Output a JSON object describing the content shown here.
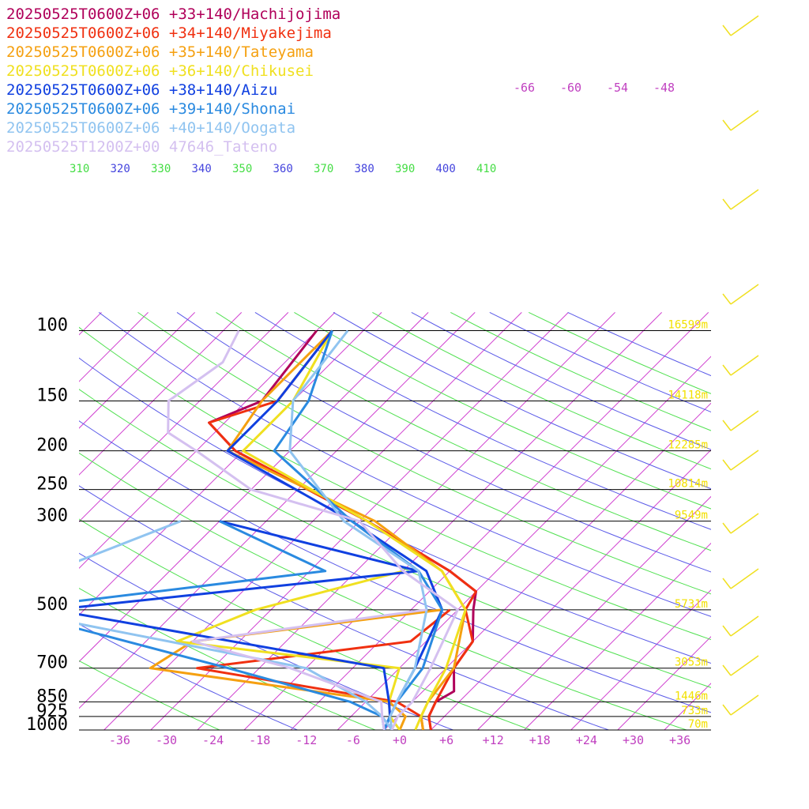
{
  "chart_data": {
    "type": "line",
    "subtype": "skew-T log-p",
    "pressure_levels": [
      100,
      150,
      200,
      250,
      300,
      500,
      700,
      850,
      925,
      1000
    ],
    "temperature_ticks": [
      "-36",
      "-30",
      "-24",
      "-18",
      "-12",
      "-6",
      "+0",
      "+6",
      "+12",
      "+18",
      "+24",
      "+30",
      "+36"
    ],
    "level_heights": [
      {
        "p": 100,
        "label": "16599m"
      },
      {
        "p": 150,
        "label": "14118m"
      },
      {
        "p": 200,
        "label": "12285m"
      },
      {
        "p": 250,
        "label": "10814m"
      },
      {
        "p": 300,
        "label": "9549m"
      },
      {
        "p": 500,
        "label": "5731m"
      },
      {
        "p": 700,
        "label": "3053m"
      },
      {
        "p": 850,
        "label": "1446m"
      },
      {
        "p": 925,
        "label": "733m"
      },
      {
        "p": 1000,
        "label": "70m"
      }
    ],
    "theta_labels": [
      {
        "label": "310",
        "color": "#44dd44"
      },
      {
        "label": "320",
        "color": "#4444dd"
      },
      {
        "label": "330",
        "color": "#44dd44"
      },
      {
        "label": "340",
        "color": "#4444dd"
      },
      {
        "label": "350",
        "color": "#44dd44"
      },
      {
        "label": "360",
        "color": "#4444dd"
      },
      {
        "label": "370",
        "color": "#44dd44"
      },
      {
        "label": "380",
        "color": "#4444dd"
      },
      {
        "label": "390",
        "color": "#44dd44"
      },
      {
        "label": "400",
        "color": "#4444dd"
      },
      {
        "label": "410",
        "color": "#44dd44"
      }
    ],
    "isotherm_labels": [
      "-66",
      "-60",
      "-54",
      "-48"
    ],
    "grid": true,
    "legend_position": "top-left",
    "series": [
      {
        "name": "20250525T0600Z+06 +33+140/Hachijojima",
        "color": "#b0005a",
        "temperature": [
          [
            100,
            -62
          ],
          [
            150,
            -60
          ],
          [
            170,
            -64
          ],
          [
            200,
            -57
          ],
          [
            300,
            -31
          ],
          [
            400,
            -14
          ],
          [
            450,
            -8
          ],
          [
            500,
            -6
          ],
          [
            600,
            -2
          ],
          [
            700,
            -1
          ],
          [
            800,
            2
          ],
          [
            850,
            1
          ],
          [
            925,
            2
          ],
          [
            1000,
            4
          ]
        ],
        "dewpoint": []
      },
      {
        "name": "20250525T0600Z+06 +34+140/Miyakejima",
        "color": "#f03010",
        "temperature": [
          [
            100,
            -60
          ],
          [
            150,
            -58
          ],
          [
            170,
            -64
          ],
          [
            200,
            -57
          ],
          [
            300,
            -31
          ],
          [
            400,
            -14
          ],
          [
            450,
            -8
          ],
          [
            500,
            -7
          ],
          [
            600,
            -2
          ],
          [
            700,
            -1
          ],
          [
            850,
            1
          ],
          [
            925,
            2
          ],
          [
            1000,
            4
          ]
        ],
        "dewpoint": [
          [
            500,
            -9
          ],
          [
            600,
            -10
          ],
          [
            700,
            -34
          ],
          [
            850,
            -4
          ],
          [
            925,
            1
          ],
          [
            1000,
            3
          ]
        ]
      },
      {
        "name": "20250525T0600Z+06 +35+140/Tateyama",
        "color": "#f5a010",
        "temperature": [
          [
            100,
            -60
          ],
          [
            150,
            -60
          ],
          [
            200,
            -58
          ],
          [
            300,
            -30
          ],
          [
            400,
            -15
          ],
          [
            500,
            -7
          ],
          [
            700,
            -1
          ],
          [
            850,
            0
          ],
          [
            925,
            1
          ],
          [
            1000,
            3
          ]
        ],
        "dewpoint": [
          [
            500,
            -10
          ],
          [
            600,
            -38
          ],
          [
            700,
            -40
          ],
          [
            850,
            -5
          ],
          [
            925,
            -1
          ],
          [
            1000,
            0
          ]
        ]
      },
      {
        "name": "20250525T0600Z+06 +36+140/Chikusei",
        "color": "#f0e020",
        "temperature": [
          [
            100,
            -60
          ],
          [
            150,
            -56
          ],
          [
            200,
            -56
          ],
          [
            300,
            -31
          ],
          [
            400,
            -15
          ],
          [
            500,
            -7
          ],
          [
            700,
            -2
          ],
          [
            850,
            0
          ],
          [
            925,
            1
          ],
          [
            1000,
            2
          ]
        ],
        "dewpoint": [
          [
            400,
            -20
          ],
          [
            500,
            -34
          ],
          [
            600,
            -40
          ],
          [
            700,
            -8
          ],
          [
            850,
            -5
          ],
          [
            925,
            -3
          ],
          [
            1000,
            0
          ]
        ]
      },
      {
        "name": "20250525T0600Z+06 +38+140/Aizu",
        "color": "#1040e0",
        "temperature": [
          [
            100,
            -60
          ],
          [
            150,
            -58
          ],
          [
            200,
            -58
          ],
          [
            300,
            -33
          ],
          [
            400,
            -17
          ],
          [
            500,
            -10
          ],
          [
            700,
            -6
          ],
          [
            850,
            -4
          ],
          [
            925,
            -3
          ],
          [
            1000,
            -2
          ]
        ],
        "dewpoint": [
          [
            300,
            -50
          ],
          [
            400,
            -18
          ],
          [
            500,
            -60
          ],
          [
            700,
            -10
          ],
          [
            850,
            -5
          ],
          [
            925,
            -3
          ],
          [
            1000,
            -2
          ]
        ]
      },
      {
        "name": "20250525T0600Z+06 +39+140/Shonai",
        "color": "#2a8ae0",
        "temperature": [
          [
            100,
            -60
          ],
          [
            150,
            -54
          ],
          [
            200,
            -52
          ],
          [
            300,
            -33
          ],
          [
            400,
            -18
          ],
          [
            500,
            -10
          ],
          [
            700,
            -5
          ],
          [
            850,
            -4
          ],
          [
            925,
            -3
          ],
          [
            1000,
            -2
          ]
        ],
        "dewpoint": [
          [
            300,
            -50
          ],
          [
            400,
            -30
          ],
          [
            500,
            -66
          ],
          [
            700,
            -30
          ],
          [
            850,
            -10
          ],
          [
            925,
            -4
          ],
          [
            1000,
            -2
          ]
        ]
      },
      {
        "name": "20250525T0600Z+06 +40+140/Oogata",
        "color": "#90c4f0",
        "temperature": [
          [
            100,
            -58
          ],
          [
            150,
            -56
          ],
          [
            200,
            -50
          ],
          [
            300,
            -34
          ],
          [
            400,
            -18
          ],
          [
            500,
            -12
          ],
          [
            700,
            -6
          ],
          [
            850,
            -4
          ],
          [
            925,
            -3
          ],
          [
            1000,
            -1
          ]
        ],
        "dewpoint": [
          [
            300,
            -55
          ],
          [
            400,
            -65
          ],
          [
            500,
            -66
          ],
          [
            700,
            -20
          ],
          [
            850,
            -8
          ],
          [
            925,
            -4
          ],
          [
            1000,
            -1
          ]
        ]
      },
      {
        "name": "20250525T1200Z+00 47646_Tateno",
        "color": "#d4c0f0",
        "temperature": [
          [
            100,
            -72
          ],
          [
            120,
            -70
          ],
          [
            150,
            -72
          ],
          [
            180,
            -68
          ],
          [
            200,
            -62
          ],
          [
            250,
            -50
          ],
          [
            300,
            -32
          ],
          [
            400,
            -20
          ],
          [
            500,
            -8
          ],
          [
            700,
            -4
          ],
          [
            850,
            -2
          ],
          [
            925,
            -2
          ],
          [
            1000,
            -1
          ]
        ],
        "dewpoint": [
          [
            500,
            -12
          ],
          [
            600,
            -38
          ],
          [
            700,
            -22
          ],
          [
            850,
            -6
          ],
          [
            925,
            -4
          ],
          [
            1000,
            -2
          ]
        ]
      }
    ],
    "wind_barbs": [
      {
        "station": "Hachijojima"
      },
      {
        "station": "47646_Tateno"
      }
    ]
  }
}
